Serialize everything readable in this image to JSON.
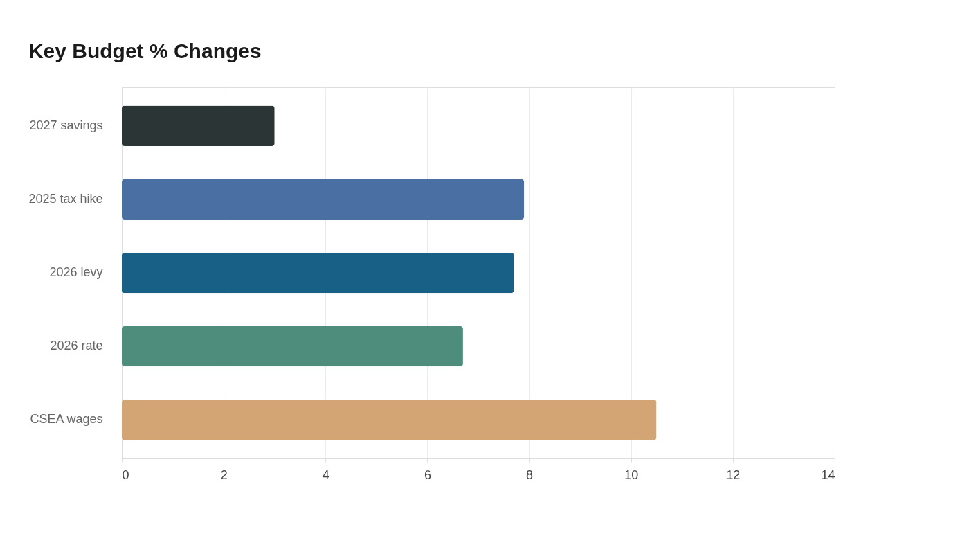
{
  "chart_data": {
    "type": "bar",
    "orientation": "horizontal",
    "title": "Key Budget % Changes",
    "categories": [
      "2027 savings",
      "2025 tax hike",
      "2026 levy",
      "2026 rate",
      "CSEA wages"
    ],
    "values": [
      3,
      7.9,
      7.7,
      6.7,
      10.5
    ],
    "colors": [
      "#2c3535",
      "#4a6fa2",
      "#186086",
      "#4e8d7c",
      "#d3a575"
    ],
    "xlim": [
      0,
      14
    ],
    "xticks": [
      0,
      2,
      4,
      6,
      8,
      10,
      12,
      14
    ],
    "grid": "x",
    "legend": false
  }
}
